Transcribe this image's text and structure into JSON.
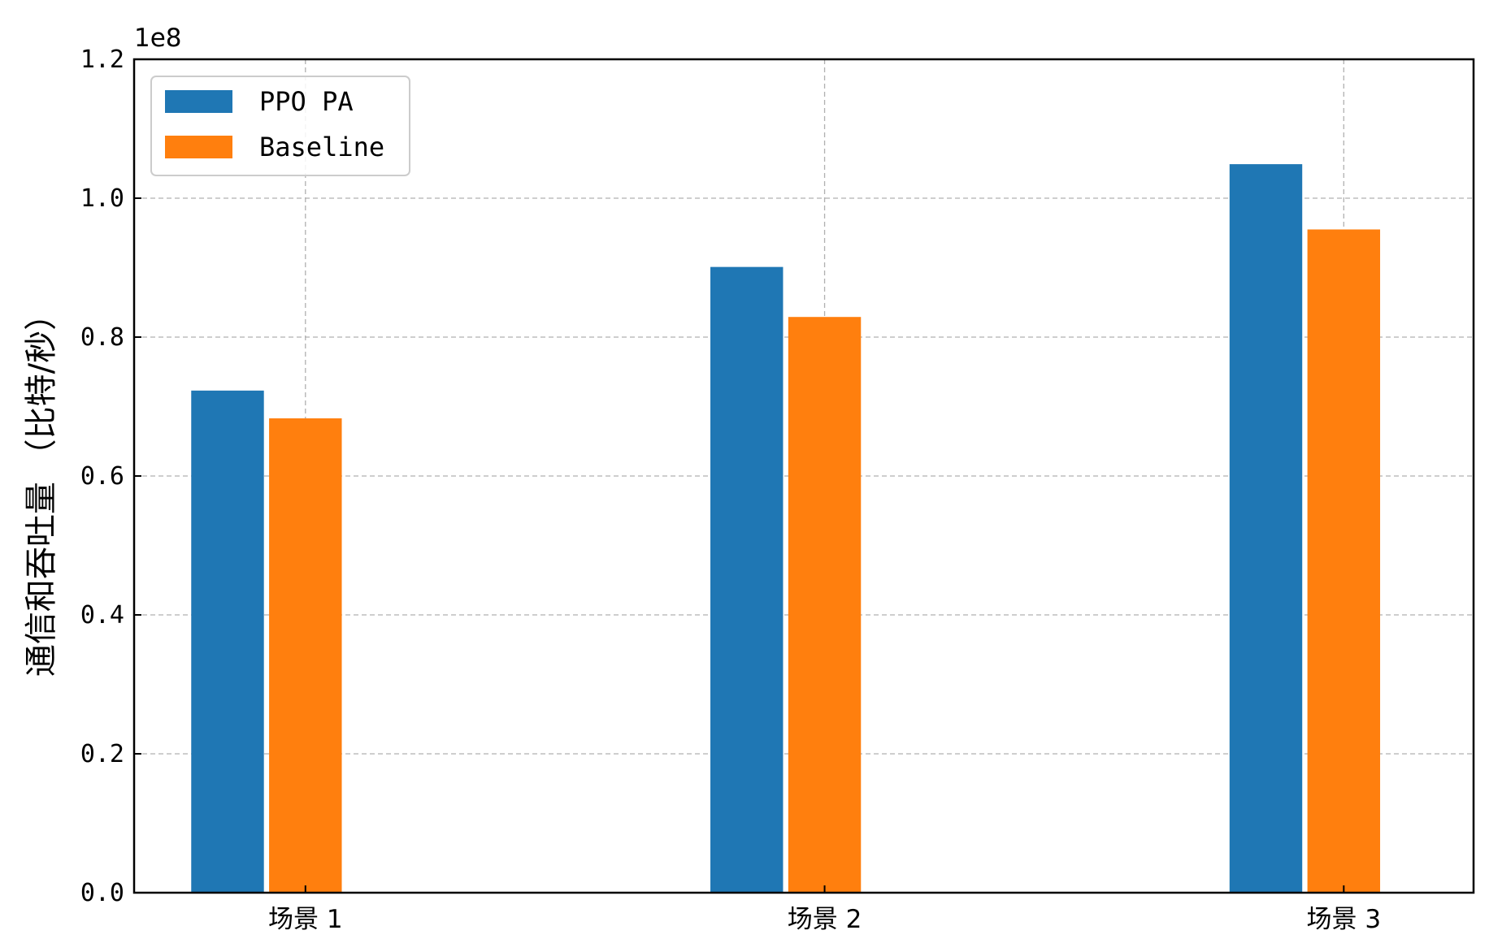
{
  "chart_data": {
    "type": "bar",
    "categories": [
      "场景 1",
      "场景 2",
      "场景 3"
    ],
    "series": [
      {
        "name": "PPO PA",
        "color": "#1f77b4",
        "values": [
          72300000,
          90100000,
          104900000
        ]
      },
      {
        "name": "Baseline",
        "color": "#ff7f0e",
        "values": [
          68300000,
          82900000,
          95500000
        ]
      }
    ],
    "ylabel": "通信和吞吐量 （比特/秒）",
    "xlabel": "",
    "title": "",
    "ylim": [
      0,
      120000000
    ],
    "y_ticks": [
      0,
      20000000,
      40000000,
      60000000,
      80000000,
      100000000,
      120000000
    ],
    "y_tick_labels": [
      "0.0",
      "0.2",
      "0.4",
      "0.6",
      "0.8",
      "1.0",
      "1.2"
    ],
    "y_offset_label": "1e8",
    "grid": true,
    "legend_position": "top-left"
  }
}
